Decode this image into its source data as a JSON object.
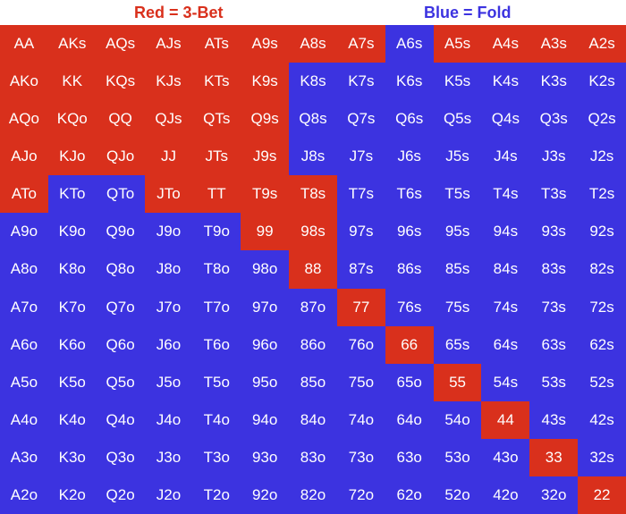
{
  "legend": {
    "red_label": "Red = 3-Bet",
    "blue_label": "Blue = Fold"
  },
  "colors": {
    "red": "#d9301c",
    "blue": "#3c33e0"
  },
  "rows": [
    [
      {
        "t": "AA",
        "c": "r"
      },
      {
        "t": "AKs",
        "c": "r"
      },
      {
        "t": "AQs",
        "c": "r"
      },
      {
        "t": "AJs",
        "c": "r"
      },
      {
        "t": "ATs",
        "c": "r"
      },
      {
        "t": "A9s",
        "c": "r"
      },
      {
        "t": "A8s",
        "c": "r"
      },
      {
        "t": "A7s",
        "c": "r"
      },
      {
        "t": "A6s",
        "c": "b"
      },
      {
        "t": "A5s",
        "c": "r"
      },
      {
        "t": "A4s",
        "c": "r"
      },
      {
        "t": "A3s",
        "c": "r"
      },
      {
        "t": "A2s",
        "c": "r"
      }
    ],
    [
      {
        "t": "AKo",
        "c": "r"
      },
      {
        "t": "KK",
        "c": "r"
      },
      {
        "t": "KQs",
        "c": "r"
      },
      {
        "t": "KJs",
        "c": "r"
      },
      {
        "t": "KTs",
        "c": "r"
      },
      {
        "t": "K9s",
        "c": "r"
      },
      {
        "t": "K8s",
        "c": "b"
      },
      {
        "t": "K7s",
        "c": "b"
      },
      {
        "t": "K6s",
        "c": "b"
      },
      {
        "t": "K5s",
        "c": "b"
      },
      {
        "t": "K4s",
        "c": "b"
      },
      {
        "t": "K3s",
        "c": "b"
      },
      {
        "t": "K2s",
        "c": "b"
      }
    ],
    [
      {
        "t": "AQo",
        "c": "r"
      },
      {
        "t": "KQo",
        "c": "r"
      },
      {
        "t": "QQ",
        "c": "r"
      },
      {
        "t": "QJs",
        "c": "r"
      },
      {
        "t": "QTs",
        "c": "r"
      },
      {
        "t": "Q9s",
        "c": "r"
      },
      {
        "t": "Q8s",
        "c": "b"
      },
      {
        "t": "Q7s",
        "c": "b"
      },
      {
        "t": "Q6s",
        "c": "b"
      },
      {
        "t": "Q5s",
        "c": "b"
      },
      {
        "t": "Q4s",
        "c": "b"
      },
      {
        "t": "Q3s",
        "c": "b"
      },
      {
        "t": "Q2s",
        "c": "b"
      }
    ],
    [
      {
        "t": "AJo",
        "c": "r"
      },
      {
        "t": "KJo",
        "c": "r"
      },
      {
        "t": "QJo",
        "c": "r"
      },
      {
        "t": "JJ",
        "c": "r"
      },
      {
        "t": "JTs",
        "c": "r"
      },
      {
        "t": "J9s",
        "c": "r"
      },
      {
        "t": "J8s",
        "c": "b"
      },
      {
        "t": "J7s",
        "c": "b"
      },
      {
        "t": "J6s",
        "c": "b"
      },
      {
        "t": "J5s",
        "c": "b"
      },
      {
        "t": "J4s",
        "c": "b"
      },
      {
        "t": "J3s",
        "c": "b"
      },
      {
        "t": "J2s",
        "c": "b"
      }
    ],
    [
      {
        "t": "ATo",
        "c": "r"
      },
      {
        "t": "KTo",
        "c": "b"
      },
      {
        "t": "QTo",
        "c": "b"
      },
      {
        "t": "JTo",
        "c": "r"
      },
      {
        "t": "TT",
        "c": "r"
      },
      {
        "t": "T9s",
        "c": "r"
      },
      {
        "t": "T8s",
        "c": "r"
      },
      {
        "t": "T7s",
        "c": "b"
      },
      {
        "t": "T6s",
        "c": "b"
      },
      {
        "t": "T5s",
        "c": "b"
      },
      {
        "t": "T4s",
        "c": "b"
      },
      {
        "t": "T3s",
        "c": "b"
      },
      {
        "t": "T2s",
        "c": "b"
      }
    ],
    [
      {
        "t": "A9o",
        "c": "b"
      },
      {
        "t": "K9o",
        "c": "b"
      },
      {
        "t": "Q9o",
        "c": "b"
      },
      {
        "t": "J9o",
        "c": "b"
      },
      {
        "t": "T9o",
        "c": "b"
      },
      {
        "t": "99",
        "c": "r"
      },
      {
        "t": "98s",
        "c": "r"
      },
      {
        "t": "97s",
        "c": "b"
      },
      {
        "t": "96s",
        "c": "b"
      },
      {
        "t": "95s",
        "c": "b"
      },
      {
        "t": "94s",
        "c": "b"
      },
      {
        "t": "93s",
        "c": "b"
      },
      {
        "t": "92s",
        "c": "b"
      }
    ],
    [
      {
        "t": "A8o",
        "c": "b"
      },
      {
        "t": "K8o",
        "c": "b"
      },
      {
        "t": "Q8o",
        "c": "b"
      },
      {
        "t": "J8o",
        "c": "b"
      },
      {
        "t": "T8o",
        "c": "b"
      },
      {
        "t": "98o",
        "c": "b"
      },
      {
        "t": "88",
        "c": "r"
      },
      {
        "t": "87s",
        "c": "b"
      },
      {
        "t": "86s",
        "c": "b"
      },
      {
        "t": "85s",
        "c": "b"
      },
      {
        "t": "84s",
        "c": "b"
      },
      {
        "t": "83s",
        "c": "b"
      },
      {
        "t": "82s",
        "c": "b"
      }
    ],
    [
      {
        "t": "A7o",
        "c": "b"
      },
      {
        "t": "K7o",
        "c": "b"
      },
      {
        "t": "Q7o",
        "c": "b"
      },
      {
        "t": "J7o",
        "c": "b"
      },
      {
        "t": "T7o",
        "c": "b"
      },
      {
        "t": "97o",
        "c": "b"
      },
      {
        "t": "87o",
        "c": "b"
      },
      {
        "t": "77",
        "c": "r"
      },
      {
        "t": "76s",
        "c": "b"
      },
      {
        "t": "75s",
        "c": "b"
      },
      {
        "t": "74s",
        "c": "b"
      },
      {
        "t": "73s",
        "c": "b"
      },
      {
        "t": "72s",
        "c": "b"
      }
    ],
    [
      {
        "t": "A6o",
        "c": "b"
      },
      {
        "t": "K6o",
        "c": "b"
      },
      {
        "t": "Q6o",
        "c": "b"
      },
      {
        "t": "J6o",
        "c": "b"
      },
      {
        "t": "T6o",
        "c": "b"
      },
      {
        "t": "96o",
        "c": "b"
      },
      {
        "t": "86o",
        "c": "b"
      },
      {
        "t": "76o",
        "c": "b"
      },
      {
        "t": "66",
        "c": "r"
      },
      {
        "t": "65s",
        "c": "b"
      },
      {
        "t": "64s",
        "c": "b"
      },
      {
        "t": "63s",
        "c": "b"
      },
      {
        "t": "62s",
        "c": "b"
      }
    ],
    [
      {
        "t": "A5o",
        "c": "b"
      },
      {
        "t": "K5o",
        "c": "b"
      },
      {
        "t": "Q5o",
        "c": "b"
      },
      {
        "t": "J5o",
        "c": "b"
      },
      {
        "t": "T5o",
        "c": "b"
      },
      {
        "t": "95o",
        "c": "b"
      },
      {
        "t": "85o",
        "c": "b"
      },
      {
        "t": "75o",
        "c": "b"
      },
      {
        "t": "65o",
        "c": "b"
      },
      {
        "t": "55",
        "c": "r"
      },
      {
        "t": "54s",
        "c": "b"
      },
      {
        "t": "53s",
        "c": "b"
      },
      {
        "t": "52s",
        "c": "b"
      }
    ],
    [
      {
        "t": "A4o",
        "c": "b"
      },
      {
        "t": "K4o",
        "c": "b"
      },
      {
        "t": "Q4o",
        "c": "b"
      },
      {
        "t": "J4o",
        "c": "b"
      },
      {
        "t": "T4o",
        "c": "b"
      },
      {
        "t": "94o",
        "c": "b"
      },
      {
        "t": "84o",
        "c": "b"
      },
      {
        "t": "74o",
        "c": "b"
      },
      {
        "t": "64o",
        "c": "b"
      },
      {
        "t": "54o",
        "c": "b"
      },
      {
        "t": "44",
        "c": "r"
      },
      {
        "t": "43s",
        "c": "b"
      },
      {
        "t": "42s",
        "c": "b"
      }
    ],
    [
      {
        "t": "A3o",
        "c": "b"
      },
      {
        "t": "K3o",
        "c": "b"
      },
      {
        "t": "Q3o",
        "c": "b"
      },
      {
        "t": "J3o",
        "c": "b"
      },
      {
        "t": "T3o",
        "c": "b"
      },
      {
        "t": "93o",
        "c": "b"
      },
      {
        "t": "83o",
        "c": "b"
      },
      {
        "t": "73o",
        "c": "b"
      },
      {
        "t": "63o",
        "c": "b"
      },
      {
        "t": "53o",
        "c": "b"
      },
      {
        "t": "43o",
        "c": "b"
      },
      {
        "t": "33",
        "c": "r"
      },
      {
        "t": "32s",
        "c": "b"
      }
    ],
    [
      {
        "t": "A2o",
        "c": "b"
      },
      {
        "t": "K2o",
        "c": "b"
      },
      {
        "t": "Q2o",
        "c": "b"
      },
      {
        "t": "J2o",
        "c": "b"
      },
      {
        "t": "T2o",
        "c": "b"
      },
      {
        "t": "92o",
        "c": "b"
      },
      {
        "t": "82o",
        "c": "b"
      },
      {
        "t": "72o",
        "c": "b"
      },
      {
        "t": "62o",
        "c": "b"
      },
      {
        "t": "52o",
        "c": "b"
      },
      {
        "t": "42o",
        "c": "b"
      },
      {
        "t": "32o",
        "c": "b"
      },
      {
        "t": "22",
        "c": "r"
      }
    ]
  ]
}
